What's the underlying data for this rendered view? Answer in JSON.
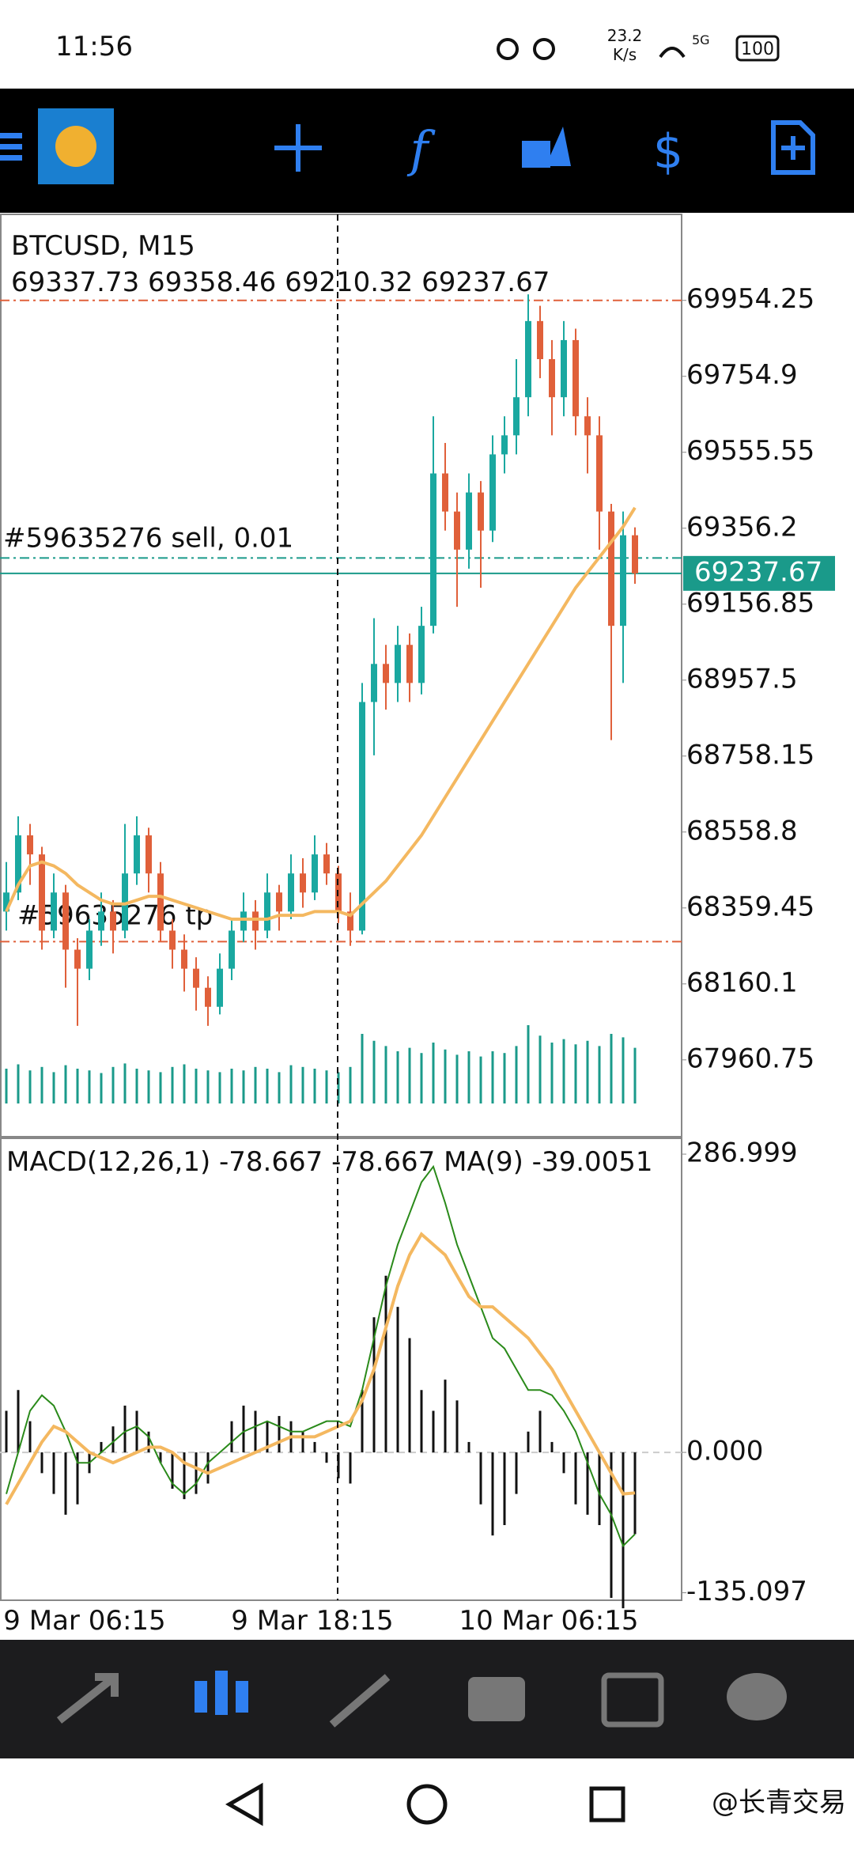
{
  "status_bar": {
    "time": "11:56",
    "speed": "23.2",
    "speed_unit": "K/s",
    "network": "5G",
    "battery": "100"
  },
  "chart": {
    "symbol": "BTCUSD, M15",
    "ohlc": "69337.73 69358.46 69210.32 69237.67",
    "ylim": [
      67759,
      70180
    ],
    "yticks": [
      69954.25,
      69754.9,
      69555.55,
      69356.2,
      69156.85,
      68957.5,
      68758.15,
      68558.8,
      68359.45,
      68160.1,
      67960.75
    ],
    "last_price": 69237.67,
    "sell_price": 69278,
    "tp_price": 68271,
    "high_line": 69954.25,
    "sell_label": "#59635276 sell, 0.01",
    "tp_label": "#59635276 tp",
    "candles": [
      [
        68350,
        68480,
        68300,
        68400
      ],
      [
        68400,
        68600,
        68380,
        68550
      ],
      [
        68550,
        68580,
        68420,
        68500
      ],
      [
        68500,
        68520,
        68250,
        68300
      ],
      [
        68300,
        68450,
        68280,
        68400
      ],
      [
        68400,
        68420,
        68150,
        68250
      ],
      [
        68250,
        68280,
        68050,
        68200
      ],
      [
        68200,
        68330,
        68170,
        68300
      ],
      [
        68300,
        68400,
        68260,
        68350
      ],
      [
        68350,
        68380,
        68240,
        68300
      ],
      [
        68300,
        68580,
        68280,
        68450
      ],
      [
        68450,
        68600,
        68420,
        68550
      ],
      [
        68550,
        68570,
        68400,
        68450
      ],
      [
        68450,
        68480,
        68270,
        68300
      ],
      [
        68300,
        68330,
        68200,
        68250
      ],
      [
        68250,
        68290,
        68140,
        68200
      ],
      [
        68200,
        68230,
        68090,
        68150
      ],
      [
        68150,
        68180,
        68050,
        68100
      ],
      [
        68100,
        68240,
        68080,
        68200
      ],
      [
        68200,
        68330,
        68170,
        68300
      ],
      [
        68300,
        68400,
        68270,
        68350
      ],
      [
        68350,
        68380,
        68250,
        68300
      ],
      [
        68300,
        68450,
        68280,
        68400
      ],
      [
        68400,
        68420,
        68300,
        68350
      ],
      [
        68350,
        68500,
        68330,
        68450
      ],
      [
        68450,
        68490,
        68360,
        68400
      ],
      [
        68400,
        68550,
        68380,
        68500
      ],
      [
        68500,
        68530,
        68420,
        68450
      ],
      [
        68450,
        68470,
        68320,
        68350
      ],
      [
        68350,
        68400,
        68260,
        68300
      ],
      [
        68300,
        68950,
        68290,
        68900
      ],
      [
        68900,
        69120,
        68760,
        69000
      ],
      [
        69000,
        69050,
        68880,
        68950
      ],
      [
        68950,
        69100,
        68900,
        69050
      ],
      [
        69050,
        69080,
        68900,
        68950
      ],
      [
        68950,
        69150,
        68920,
        69100
      ],
      [
        69100,
        69650,
        69080,
        69500
      ],
      [
        69500,
        69580,
        69350,
        69400
      ],
      [
        69400,
        69450,
        69150,
        69300
      ],
      [
        69300,
        69500,
        69250,
        69450
      ],
      [
        69450,
        69480,
        69200,
        69350
      ],
      [
        69350,
        69600,
        69320,
        69550
      ],
      [
        69550,
        69650,
        69500,
        69600
      ],
      [
        69600,
        69800,
        69550,
        69700
      ],
      [
        69700,
        69970,
        69650,
        69900
      ],
      [
        69900,
        69940,
        69750,
        69800
      ],
      [
        69800,
        69850,
        69600,
        69700
      ],
      [
        69700,
        69900,
        69650,
        69850
      ],
      [
        69850,
        69880,
        69600,
        69650
      ],
      [
        69650,
        69700,
        69500,
        69600
      ],
      [
        69600,
        69650,
        69300,
        69400
      ],
      [
        69400,
        69420,
        68800,
        69100
      ],
      [
        69100,
        69400,
        68950,
        69337.73
      ],
      [
        69337.73,
        69358.46,
        69210.32,
        69237.67
      ]
    ],
    "ma": [
      68350,
      68420,
      68470,
      68480,
      68470,
      68450,
      68420,
      68400,
      68380,
      68370,
      68370,
      68380,
      68390,
      68390,
      68380,
      68370,
      68360,
      68350,
      68340,
      68330,
      68330,
      68330,
      68330,
      68340,
      68340,
      68340,
      68350,
      68350,
      68350,
      68340,
      68370,
      68400,
      68430,
      68470,
      68510,
      68550,
      68600,
      68650,
      68700,
      68750,
      68800,
      68850,
      68900,
      68950,
      69000,
      69050,
      69100,
      69150,
      69200,
      69240,
      69280,
      69320,
      69360,
      69410
    ],
    "volume": [
      40,
      45,
      38,
      42,
      36,
      44,
      40,
      38,
      35,
      42,
      46,
      40,
      38,
      36,
      42,
      45,
      40,
      38,
      36,
      40,
      38,
      42,
      40,
      36,
      44,
      42,
      40,
      38,
      36,
      42,
      80,
      72,
      66,
      60,
      64,
      58,
      70,
      62,
      56,
      60,
      54,
      60,
      58,
      66,
      90,
      78,
      70,
      74,
      68,
      72,
      66,
      80,
      76,
      64
    ],
    "time_labels": [
      "9 Mar 06:15",
      "9 Mar 18:15",
      "10 Mar 06:15"
    ]
  },
  "macd": {
    "header": "MACD(12,26,1) -78.667 -78.667 MA(9) -39.0051",
    "ylim": [
      -142.3,
      301.5
    ],
    "yticks": [
      286.999,
      {
        "value": 0,
        "label": "0.000"
      },
      -135.097
    ],
    "histogram": [
      40,
      60,
      30,
      -20,
      -40,
      -60,
      -50,
      -20,
      10,
      25,
      45,
      40,
      20,
      -10,
      -35,
      -45,
      -40,
      -30,
      0,
      30,
      45,
      40,
      30,
      35,
      30,
      20,
      10,
      -10,
      -25,
      -30,
      60,
      130,
      170,
      140,
      110,
      60,
      40,
      70,
      50,
      10,
      -50,
      -80,
      -70,
      -40,
      20,
      40,
      10,
      -20,
      -50,
      -60,
      -70,
      -140,
      -150,
      -78.667
    ],
    "main": [
      -40,
      0,
      40,
      55,
      45,
      20,
      -10,
      -10,
      0,
      10,
      20,
      25,
      15,
      -10,
      -30,
      -40,
      -30,
      -10,
      0,
      10,
      20,
      25,
      30,
      25,
      20,
      20,
      25,
      30,
      30,
      25,
      60,
      110,
      160,
      200,
      230,
      260,
      275,
      240,
      200,
      170,
      140,
      110,
      100,
      80,
      60,
      60,
      55,
      40,
      20,
      -10,
      -40,
      -60,
      -90,
      -78.667
    ],
    "signal": [
      -50,
      -30,
      -10,
      10,
      25,
      20,
      10,
      0,
      -5,
      -10,
      -5,
      0,
      5,
      5,
      0,
      -10,
      -15,
      -20,
      -15,
      -10,
      -5,
      0,
      5,
      10,
      15,
      15,
      15,
      20,
      25,
      30,
      50,
      80,
      120,
      160,
      190,
      210,
      200,
      190,
      170,
      150,
      140,
      140,
      130,
      120,
      110,
      95,
      80,
      60,
      40,
      20,
      0,
      -20,
      -40,
      -39.0051
    ]
  },
  "watermark": "@长青交易"
}
